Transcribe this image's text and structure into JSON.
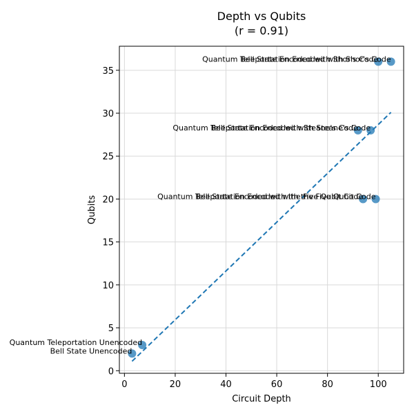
{
  "chart_data": {
    "type": "scatter",
    "title": "Depth vs Qubits",
    "subtitle": "(r = 0.91)",
    "xlabel": "Circuit Depth",
    "ylabel": "Qubits",
    "xlim": [
      -2,
      110
    ],
    "ylim": [
      -0.3,
      37.8
    ],
    "xticks": [
      0,
      20,
      40,
      60,
      80,
      100
    ],
    "yticks": [
      0,
      5,
      10,
      15,
      20,
      25,
      30,
      35
    ],
    "grid": true,
    "colors": {
      "points": "#1f77b4",
      "trend": "#1f77b4",
      "grid": "#d9d9d9"
    },
    "points": [
      {
        "label": "Bell State Unencoded",
        "x": 3,
        "y": 2
      },
      {
        "label": "Quantum Teleportation Unencoded",
        "x": 7,
        "y": 3
      },
      {
        "label": "Bell State Encoded with the Five Qubit Code",
        "x": 94,
        "y": 20
      },
      {
        "label": "Quantum Teleportation Encoded with the Five Qubit Code",
        "x": 99,
        "y": 20
      },
      {
        "label": "Bell State Encoded with Steane's Code",
        "x": 92,
        "y": 28
      },
      {
        "label": "Quantum Teleportation Encoded with Steane's Code",
        "x": 97,
        "y": 28
      },
      {
        "label": "Bell State Encoded with Shor's Code",
        "x": 100,
        "y": 36
      },
      {
        "label": "Quantum Teleportation Encoded with Shor's Code",
        "x": 105,
        "y": 36
      }
    ],
    "trendline": {
      "style": "dashed",
      "x": [
        3,
        105
      ],
      "y": [
        1.1,
        30.1
      ]
    }
  }
}
